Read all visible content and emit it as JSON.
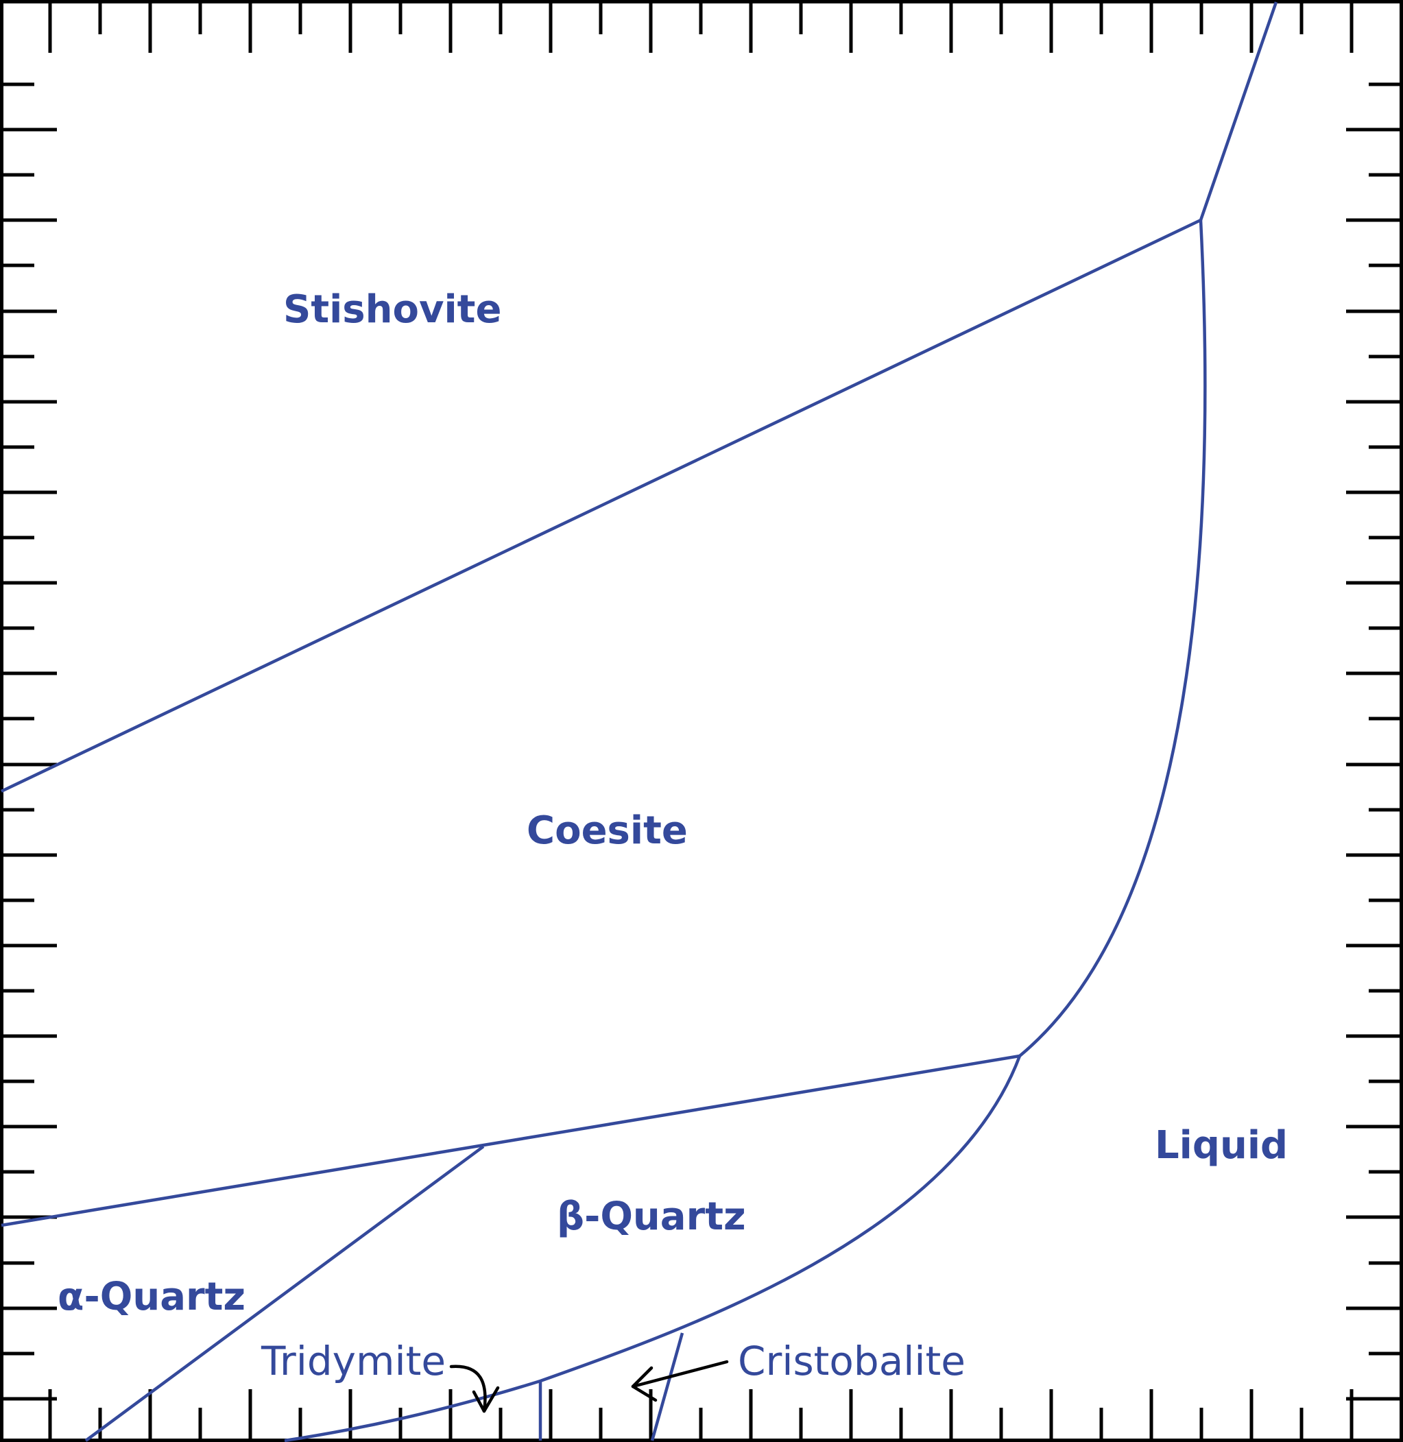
{
  "colors": {
    "boundary": "#34499b",
    "label": "#34499b",
    "frame": "#000000"
  },
  "phases": {
    "stishovite": "Stishovite",
    "coesite": "Coesite",
    "liquid": "Liquid",
    "beta_quartz": "β-Quartz",
    "alpha_quartz": "α-Quartz",
    "tridymite": "Tridymite",
    "cristobalite": "Cristobalite"
  }
}
